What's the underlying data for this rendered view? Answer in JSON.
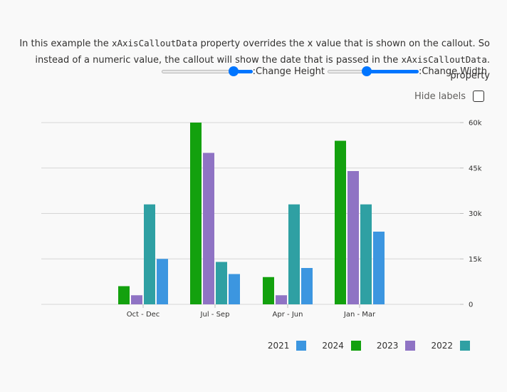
{
  "description": {
    "line1_pre": "In this example the ",
    "line1_code": "xAxisCalloutData",
    "line1_post": " property overrides the x value that is shown on the callout. So",
    "line2_pre": ".instead of a numeric value, the callout will show the date that is passed in the ",
    "line2_code": "xAxisCalloutData",
    "line2_post": " property"
  },
  "controls": {
    "height_label": ":Change Height",
    "height_value": 0.79,
    "width_label": ":Change Width",
    "width_value": 0.43,
    "hide_labels_label": "Hide labels",
    "hide_labels_checked": false
  },
  "chart_data": {
    "type": "bar",
    "categories": [
      "Oct - Dec",
      "Jul - Sep",
      "Apr - Jun",
      "Jan - Mar"
    ],
    "series": [
      {
        "name": "2024",
        "color": "#13a10e",
        "values": [
          6000,
          60000,
          9000,
          54000
        ]
      },
      {
        "name": "2023",
        "color": "#8f73c4",
        "values": [
          3000,
          50000,
          3000,
          44000
        ]
      },
      {
        "name": "2022",
        "color": "#2fa0a3",
        "values": [
          33000,
          14000,
          33000,
          33000
        ]
      },
      {
        "name": "2021",
        "color": "#3c96e0",
        "values": [
          15000,
          10000,
          12000,
          24000
        ]
      }
    ],
    "y_ticks": [
      "0",
      "15k",
      "30k",
      "45k",
      "60k"
    ],
    "ylim": [
      0,
      60000
    ],
    "grid": true,
    "y_axis_side": "right",
    "legend_position": "bottom-right",
    "legend_order": [
      "2021",
      "2024",
      "2023",
      "2022"
    ]
  }
}
